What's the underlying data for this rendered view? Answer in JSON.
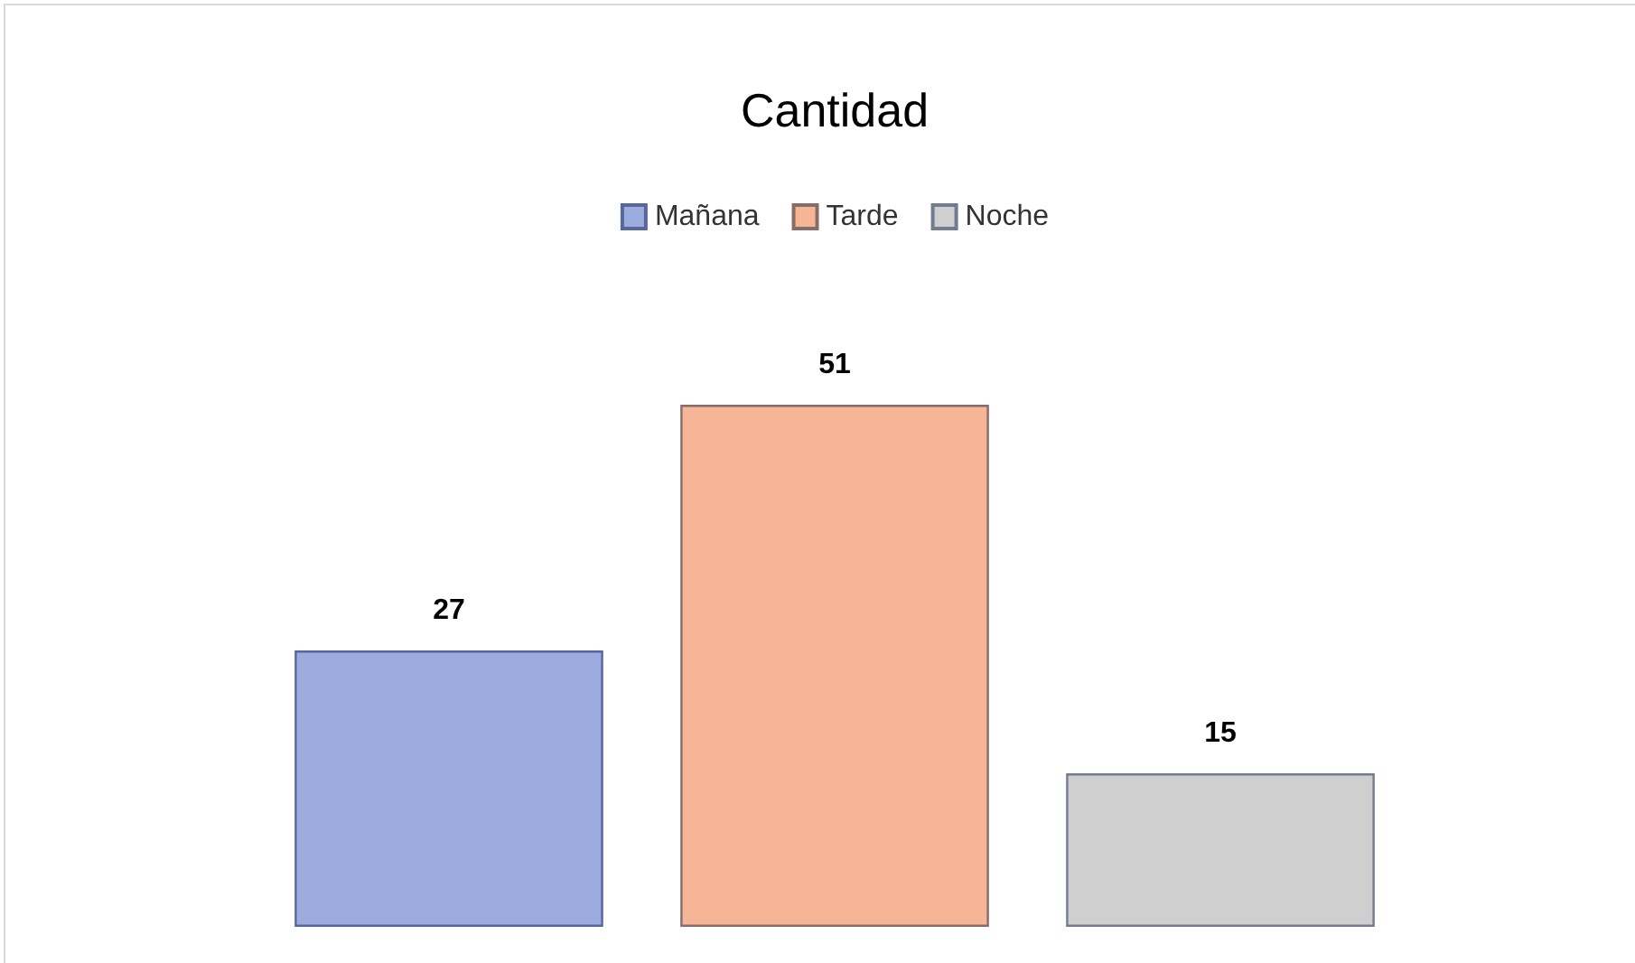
{
  "chart_data": {
    "type": "bar",
    "title": "Cantidad",
    "categories": [
      null
    ],
    "series": [
      {
        "name": "Mañana",
        "color": "#9dacdf",
        "values": [
          27
        ]
      },
      {
        "name": "Tarde",
        "color": "#f6b597",
        "values": [
          51
        ]
      },
      {
        "name": "Noche",
        "color": "#cfcfcf",
        "values": [
          15
        ]
      }
    ],
    "data_labels": true,
    "legend": "top",
    "grid": false
  }
}
